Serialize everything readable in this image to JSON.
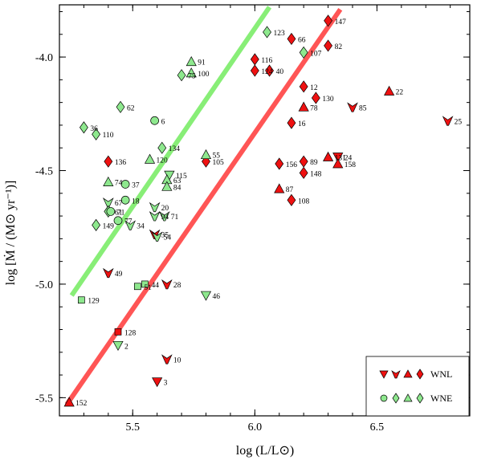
{
  "chart_data": {
    "type": "scatter",
    "xlabel": "log (L/L⊙)",
    "ylabel": "log [Ṁ / (M⊙ yr⁻¹)]",
    "xlim": [
      5.2,
      6.88
    ],
    "ylim": [
      -5.58,
      -3.77
    ],
    "x_ticks": [
      5.5,
      6.0,
      6.5
    ],
    "x_tick_labels": [
      "5.5",
      "6.0",
      "6.5"
    ],
    "y_ticks": [
      -4.0,
      -4.5,
      -5.0,
      -5.5
    ],
    "y_tick_labels": [
      "-4.0",
      "-4.5",
      "-5.0",
      "-5.5"
    ],
    "colors": {
      "WNL": "#ee1111",
      "WNE": "#8ee88e",
      "red_line": "#ff5555",
      "green_line": "#88ee77"
    },
    "lines": [
      {
        "color": "green",
        "x": [
          5.25,
          6.06
        ],
        "y": [
          -5.05,
          -3.78
        ]
      },
      {
        "color": "red",
        "x": [
          5.23,
          6.35
        ],
        "y": [
          -5.53,
          -3.79
        ]
      }
    ],
    "legend": {
      "position": "bottom-right",
      "entries": [
        {
          "label": "WNL",
          "group": "WNL"
        },
        {
          "label": "WNE",
          "group": "WNE"
        }
      ]
    },
    "series": [
      {
        "name": "WNL",
        "points": [
          {
            "label": "147",
            "x": 6.3,
            "y": -3.84,
            "shape": "diamond"
          },
          {
            "label": "66",
            "x": 6.15,
            "y": -3.92,
            "shape": "diamond"
          },
          {
            "label": "82",
            "x": 6.3,
            "y": -3.95,
            "shape": "diamond"
          },
          {
            "label": "116",
            "x": 6.0,
            "y": -4.01,
            "shape": "diamond"
          },
          {
            "label": "124",
            "x": 6.0,
            "y": -4.06,
            "shape": "diamond"
          },
          {
            "label": "40",
            "x": 6.06,
            "y": -4.06,
            "shape": "diamond"
          },
          {
            "label": "12",
            "x": 6.2,
            "y": -4.13,
            "shape": "diamond"
          },
          {
            "label": "130",
            "x": 6.25,
            "y": -4.18,
            "shape": "diamond"
          },
          {
            "label": "78",
            "x": 6.2,
            "y": -4.22,
            "shape": "triangle-up"
          },
          {
            "label": "22",
            "x": 6.55,
            "y": -4.15,
            "shape": "triangle-up"
          },
          {
            "label": "85",
            "x": 6.4,
            "y": -4.22,
            "shape": "y-shape"
          },
          {
            "label": "25",
            "x": 6.79,
            "y": -4.28,
            "shape": "y-shape"
          },
          {
            "label": "16",
            "x": 6.15,
            "y": -4.29,
            "shape": "diamond"
          },
          {
            "label": "136",
            "x": 5.4,
            "y": -4.46,
            "shape": "diamond"
          },
          {
            "label": "105",
            "x": 5.8,
            "y": -4.46,
            "shape": "diamond"
          },
          {
            "label": "89",
            "x": 6.2,
            "y": -4.46,
            "shape": "diamond"
          },
          {
            "label": "156",
            "x": 6.1,
            "y": -4.47,
            "shape": "diamond"
          },
          {
            "label": "131",
            "x": 6.3,
            "y": -4.44,
            "shape": "triangle-up"
          },
          {
            "label": "24",
            "x": 6.34,
            "y": -4.44,
            "shape": "triangle-down"
          },
          {
            "label": "158",
            "x": 6.34,
            "y": -4.47,
            "shape": "triangle-up"
          },
          {
            "label": "148",
            "x": 6.2,
            "y": -4.51,
            "shape": "diamond"
          },
          {
            "label": "87",
            "x": 6.1,
            "y": -4.58,
            "shape": "triangle-up"
          },
          {
            "label": "108",
            "x": 6.15,
            "y": -4.63,
            "shape": "diamond"
          },
          {
            "label": "35",
            "x": 5.59,
            "y": -4.78,
            "shape": "y-shape"
          },
          {
            "label": "49",
            "x": 5.4,
            "y": -4.95,
            "shape": "y-shape"
          },
          {
            "label": "28",
            "x": 5.64,
            "y": -5.0,
            "shape": "y-shape"
          },
          {
            "label": "128",
            "x": 5.44,
            "y": -5.21,
            "shape": "square"
          },
          {
            "label": "10",
            "x": 5.64,
            "y": -5.33,
            "shape": "y-shape"
          },
          {
            "label": "3",
            "x": 5.6,
            "y": -5.43,
            "shape": "triangle-down"
          },
          {
            "label": "152",
            "x": 5.24,
            "y": -5.52,
            "shape": "triangle-up"
          }
        ]
      },
      {
        "name": "WNE",
        "points": [
          {
            "label": "123",
            "x": 6.05,
            "y": -3.89,
            "shape": "diamond"
          },
          {
            "label": "107",
            "x": 6.2,
            "y": -3.98,
            "shape": "diamond"
          },
          {
            "label": "91",
            "x": 5.74,
            "y": -4.02,
            "shape": "triangle-up"
          },
          {
            "label": "100",
            "x": 5.74,
            "y": -4.07,
            "shape": "triangle-up"
          },
          {
            "label": "75",
            "x": 5.7,
            "y": -4.08,
            "shape": "diamond"
          },
          {
            "label": "62",
            "x": 5.45,
            "y": -4.22,
            "shape": "diamond"
          },
          {
            "label": "6",
            "x": 5.59,
            "y": -4.28,
            "shape": "circle"
          },
          {
            "label": "36",
            "x": 5.3,
            "y": -4.31,
            "shape": "diamond"
          },
          {
            "label": "110",
            "x": 5.35,
            "y": -4.34,
            "shape": "diamond"
          },
          {
            "label": "134",
            "x": 5.62,
            "y": -4.4,
            "shape": "diamond"
          },
          {
            "label": "120",
            "x": 5.57,
            "y": -4.45,
            "shape": "triangle-up"
          },
          {
            "label": "55",
            "x": 5.8,
            "y": -4.43,
            "shape": "triangle-up"
          },
          {
            "label": "115",
            "x": 5.65,
            "y": -4.52,
            "shape": "triangle-down"
          },
          {
            "label": "74",
            "x": 5.4,
            "y": -4.55,
            "shape": "triangle-up"
          },
          {
            "label": "37",
            "x": 5.47,
            "y": -4.56,
            "shape": "circle"
          },
          {
            "label": "63",
            "x": 5.64,
            "y": -4.54,
            "shape": "triangle-up"
          },
          {
            "label": "84",
            "x": 5.64,
            "y": -4.57,
            "shape": "triangle-up"
          },
          {
            "label": "67",
            "x": 5.4,
            "y": -4.64,
            "shape": "y-shape"
          },
          {
            "label": "18",
            "x": 5.47,
            "y": -4.63,
            "shape": "circle"
          },
          {
            "label": "61",
            "x": 5.4,
            "y": -4.68,
            "shape": "diamond"
          },
          {
            "label": "71",
            "x": 5.41,
            "y": -4.68,
            "shape": "circle"
          },
          {
            "label": "20",
            "x": 5.59,
            "y": -4.66,
            "shape": "y-shape"
          },
          {
            "label": "94",
            "x": 5.59,
            "y": -4.7,
            "shape": "y-shape"
          },
          {
            "label": "71",
            "x": 5.63,
            "y": -4.7,
            "shape": "y-shape"
          },
          {
            "label": "149",
            "x": 5.35,
            "y": -4.74,
            "shape": "diamond"
          },
          {
            "label": "77",
            "x": 5.44,
            "y": -4.72,
            "shape": "circle"
          },
          {
            "label": "34",
            "x": 5.49,
            "y": -4.74,
            "shape": "y-shape"
          },
          {
            "label": "54",
            "x": 5.6,
            "y": -4.79,
            "shape": "y-shape"
          },
          {
            "label": "44",
            "x": 5.55,
            "y": -5.0,
            "shape": "square"
          },
          {
            "label": "51",
            "x": 5.52,
            "y": -5.01,
            "shape": "square"
          },
          {
            "label": "46",
            "x": 5.8,
            "y": -5.05,
            "shape": "triangle-down"
          },
          {
            "label": "129",
            "x": 5.29,
            "y": -5.07,
            "shape": "square"
          },
          {
            "label": "2",
            "x": 5.44,
            "y": -5.27,
            "shape": "triangle-down"
          }
        ]
      }
    ]
  }
}
